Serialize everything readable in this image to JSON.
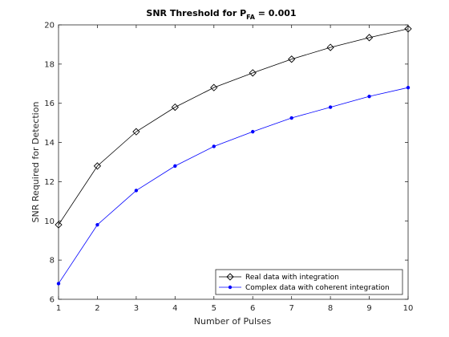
{
  "chart_data": {
    "type": "line",
    "title": {
      "main": "SNR Threshold for P",
      "subscript": "FA",
      "suffix": " = 0.001"
    },
    "xlabel": "Number of Pulses",
    "ylabel": "SNR Required for Detection",
    "xlim": [
      1,
      10
    ],
    "ylim": [
      6,
      20
    ],
    "xticks": [
      1,
      2,
      3,
      4,
      5,
      6,
      7,
      8,
      9,
      10
    ],
    "yticks": [
      6,
      8,
      10,
      12,
      14,
      16,
      18,
      20
    ],
    "grid": false,
    "legend_position": "bottom-right",
    "x": [
      1,
      2,
      3,
      4,
      5,
      6,
      7,
      8,
      9,
      10
    ],
    "series": [
      {
        "name": "Real data with integration",
        "color": "#000000",
        "marker": "diamond",
        "values": [
          9.8,
          12.8,
          14.55,
          15.8,
          16.8,
          17.55,
          18.25,
          18.85,
          19.35,
          19.8
        ]
      },
      {
        "name": "Complex data with coherent integration",
        "color": "#0000ff",
        "marker": "point",
        "values": [
          6.8,
          9.8,
          11.55,
          12.8,
          13.8,
          14.55,
          15.25,
          15.8,
          16.35,
          16.8
        ]
      }
    ]
  }
}
